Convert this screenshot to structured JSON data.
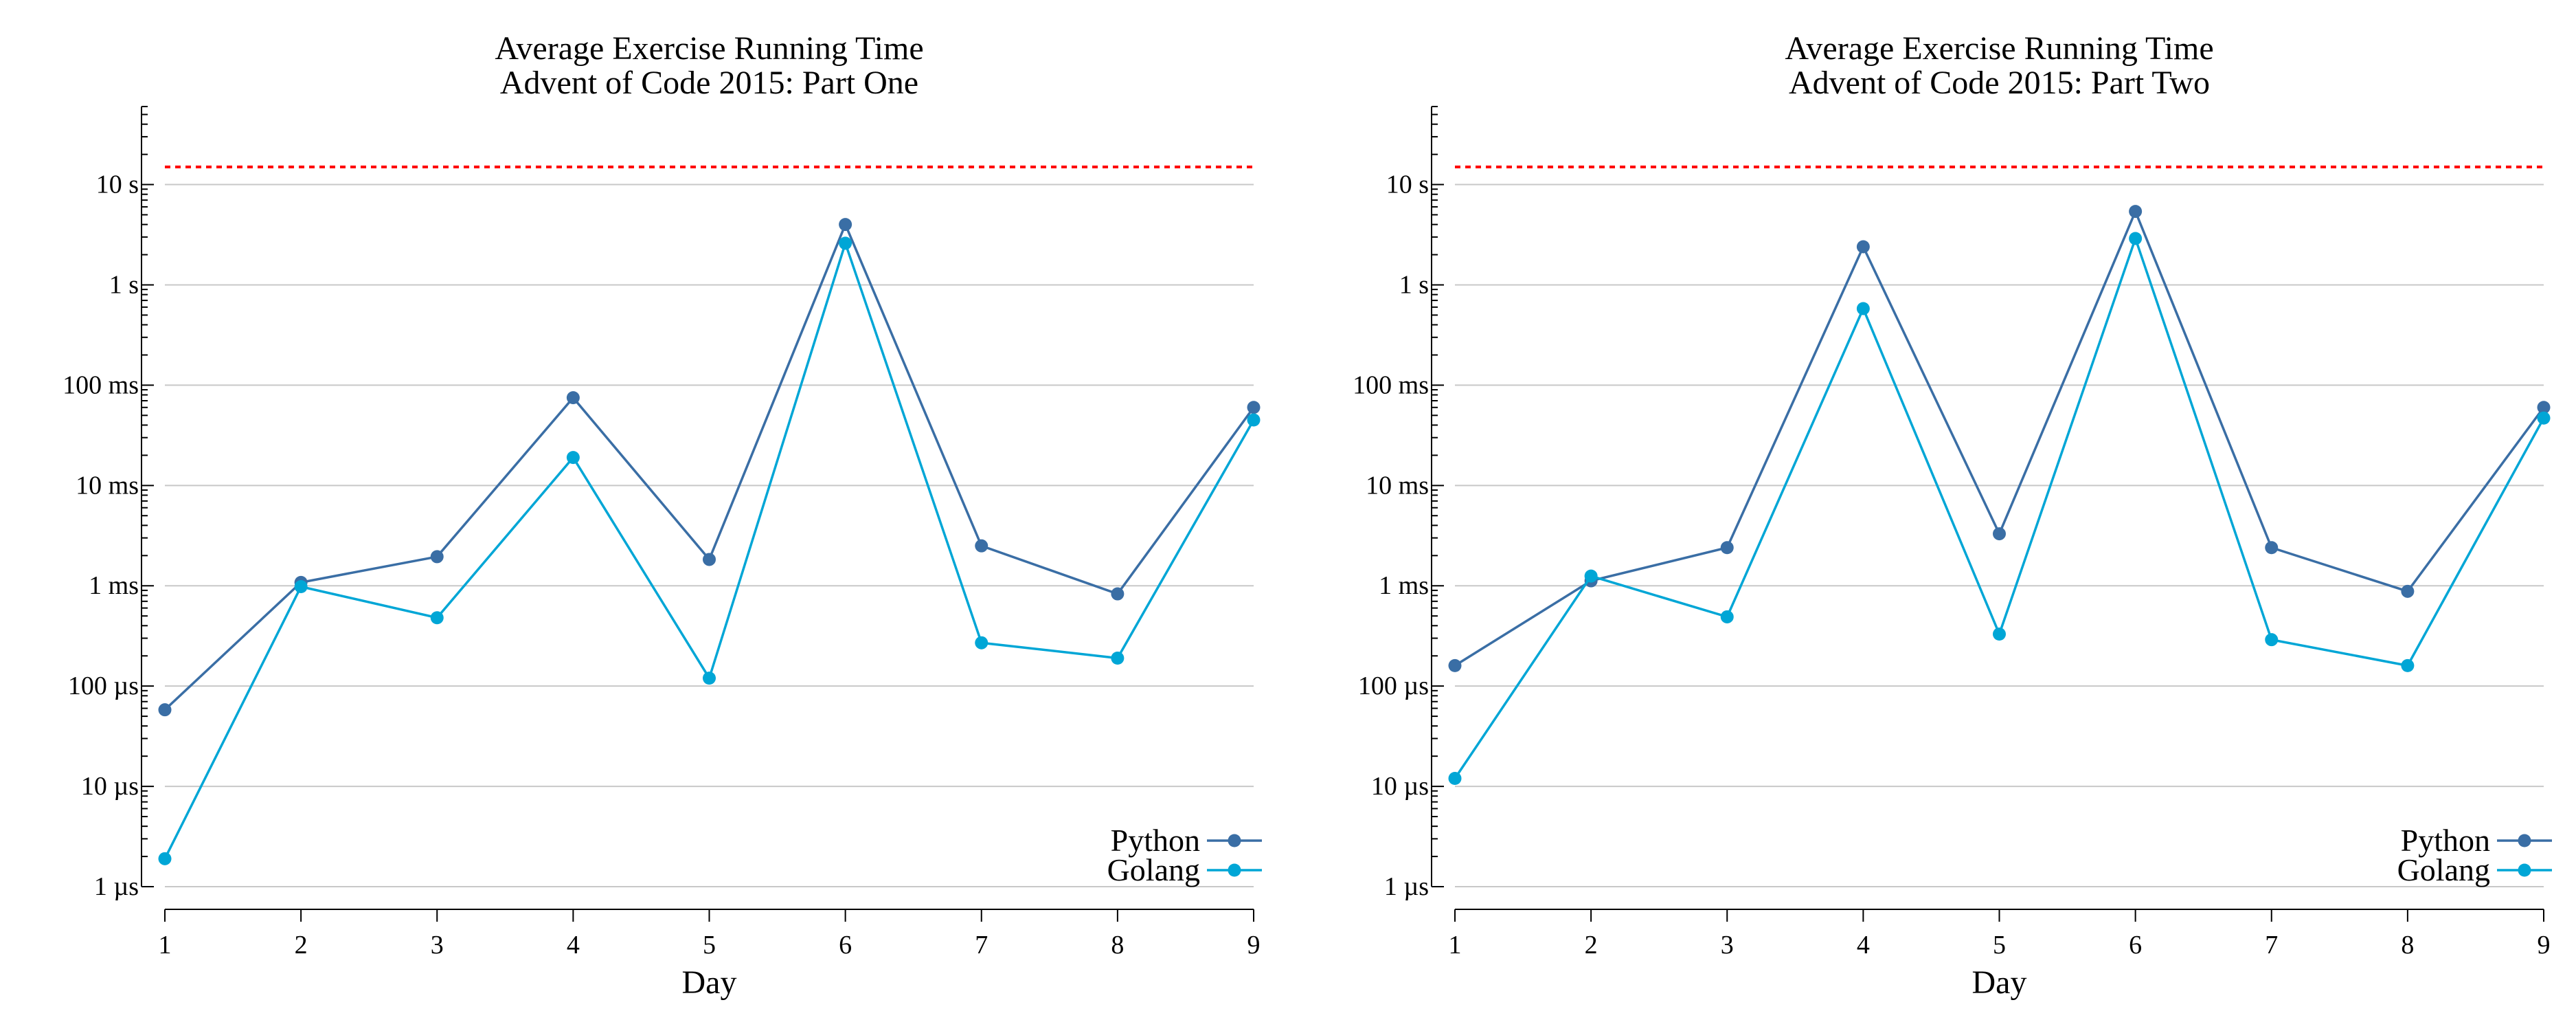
{
  "chart_data": [
    {
      "type": "line",
      "title": [
        "Average Exercise Running Time",
        "Advent of Code 2015: Part One"
      ],
      "xlabel": "Day",
      "ylabel": "",
      "x": [
        1,
        2,
        3,
        4,
        5,
        6,
        7,
        8,
        9
      ],
      "y_scale": "log",
      "ylim": [
        "1 µs",
        "60 s"
      ],
      "y_ticks": [
        {
          "value_s": 1e-06,
          "label": "1 µs"
        },
        {
          "value_s": 1e-05,
          "label": "10 µs"
        },
        {
          "value_s": 0.0001,
          "label": "100 µs"
        },
        {
          "value_s": 0.001,
          "label": "1 ms"
        },
        {
          "value_s": 0.01,
          "label": "10 ms"
        },
        {
          "value_s": 0.1,
          "label": "100 ms"
        },
        {
          "value_s": 1,
          "label": "1 s"
        },
        {
          "value_s": 10,
          "label": "10 s"
        }
      ],
      "reference_line_s": 15,
      "grid": true,
      "legend_position": "bottom-right",
      "series": [
        {
          "name": "Python",
          "color": "#3a6ea5",
          "values_s": [
            5.8e-05,
            0.00108,
            0.00195,
            0.075,
            0.00183,
            4.0,
            0.0025,
            0.00083,
            0.06
          ]
        },
        {
          "name": "Golang",
          "color": "#00a6d6",
          "values_s": [
            1.9e-06,
            0.00098,
            0.00048,
            0.019,
            0.00012,
            2.6,
            0.00027,
            0.00019,
            0.045
          ]
        }
      ]
    },
    {
      "type": "line",
      "title": [
        "Average Exercise Running Time",
        "Advent of Code 2015: Part Two"
      ],
      "xlabel": "Day",
      "ylabel": "",
      "x": [
        1,
        2,
        3,
        4,
        5,
        6,
        7,
        8,
        9
      ],
      "y_scale": "log",
      "ylim": [
        "1 µs",
        "60 s"
      ],
      "y_ticks": [
        {
          "value_s": 1e-06,
          "label": "1 µs"
        },
        {
          "value_s": 1e-05,
          "label": "10 µs"
        },
        {
          "value_s": 0.0001,
          "label": "100 µs"
        },
        {
          "value_s": 0.001,
          "label": "1 ms"
        },
        {
          "value_s": 0.01,
          "label": "10 ms"
        },
        {
          "value_s": 0.1,
          "label": "100 ms"
        },
        {
          "value_s": 1,
          "label": "1 s"
        },
        {
          "value_s": 10,
          "label": "10 s"
        }
      ],
      "reference_line_s": 15,
      "grid": true,
      "legend_position": "bottom-right",
      "series": [
        {
          "name": "Python",
          "color": "#3a6ea5",
          "values_s": [
            0.00016,
            0.00112,
            0.0024,
            2.4,
            0.0033,
            5.4,
            0.0024,
            0.00088,
            0.06
          ]
        },
        {
          "name": "Golang",
          "color": "#00a6d6",
          "values_s": [
            1.2e-05,
            0.00125,
            0.00049,
            0.58,
            0.00033,
            2.9,
            0.00029,
            0.00016,
            0.047
          ]
        }
      ]
    }
  ],
  "reference_color": "#ff0000"
}
